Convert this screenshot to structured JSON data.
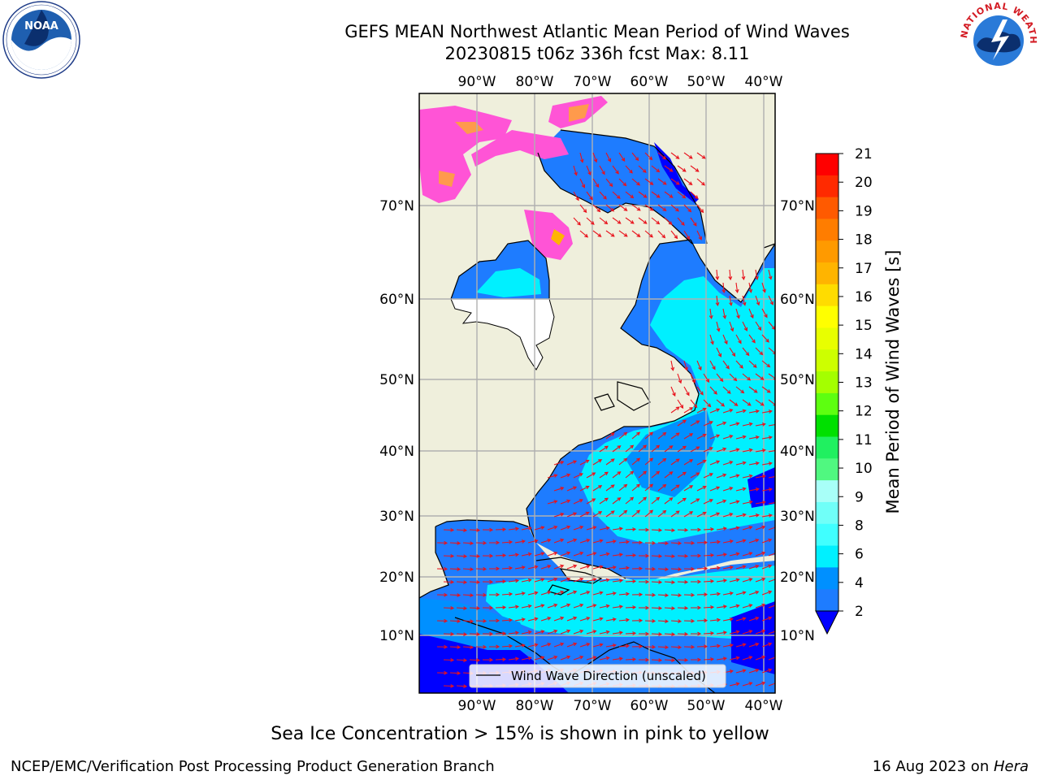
{
  "title": {
    "line1": "GEFS MEAN Northwest Atlantic Mean Period of Wind Waves",
    "line2": "20230815 t06z 336h fcst   Max: 8.11"
  },
  "map": {
    "lon_labels": [
      "90°W",
      "80°W",
      "70°W",
      "60°W",
      "50°W",
      "40°W"
    ],
    "lat_labels": [
      "70°N",
      "60°N",
      "50°N",
      "40°N",
      "30°N",
      "20°N",
      "10°N"
    ],
    "legend_label": "Wind Wave Direction (unscaled)",
    "land_color": "#efefdc",
    "ocean_color": "#1e7cff",
    "arrow_color": "#e8121c"
  },
  "colorbar": {
    "label": "Mean Period of Wind Waves [s]",
    "tick_labels": [
      "21",
      "20",
      "19",
      "18",
      "17",
      "16",
      "15",
      "14",
      "13",
      "12",
      "11",
      "10",
      "9",
      "8",
      "6",
      "4",
      "2"
    ],
    "colors": [
      "#ff0000",
      "#ff2a00",
      "#ff5a00",
      "#ff7d00",
      "#ff9a00",
      "#ffb400",
      "#ffdc00",
      "#ffff00",
      "#e8ff00",
      "#cdff00",
      "#a4ff00",
      "#5dff10",
      "#00e000",
      "#20f060",
      "#50f880",
      "#a8fff8",
      "#70fff8",
      "#40ffff",
      "#00f0ff",
      "#0090ff",
      "#1e7cff"
    ],
    "extend_color": "#0000ff"
  },
  "footnote": "Sea Ice Concentration > 15% is shown in pink to yellow",
  "credit": "NCEP/EMC/Verification Post Processing Product Generation Branch",
  "date": {
    "text": "16 Aug 2023 on ",
    "host": "Hera"
  },
  "logos": {
    "noaa": {
      "text": "NOAA"
    },
    "nws": {
      "text": "NATIONAL WEATHER SERVICE"
    }
  }
}
